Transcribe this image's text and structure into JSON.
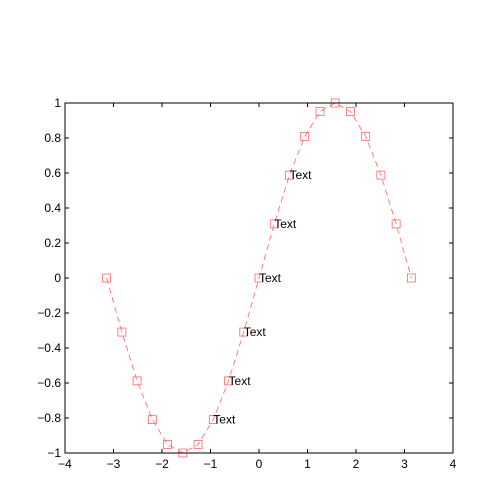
{
  "chart_data": {
    "type": "line",
    "title": "",
    "xlabel": "",
    "ylabel": "",
    "xlim": [
      -4,
      4
    ],
    "ylim": [
      -1,
      1
    ],
    "grid": false,
    "x_ticks": [
      -4,
      -3,
      -2,
      -1,
      0,
      1,
      2,
      3,
      4
    ],
    "y_ticks": [
      -1,
      -0.8,
      -0.6,
      -0.4,
      -0.2,
      0,
      0.2,
      0.4,
      0.6,
      0.8,
      1
    ],
    "x_tick_labels": [
      "−4",
      "−3",
      "−2",
      "−1",
      "0",
      "1",
      "2",
      "3",
      "4"
    ],
    "y_tick_labels": [
      "−1",
      "−0.8",
      "−0.6",
      "−0.4",
      "−0.2",
      "0",
      "0.2",
      "0.4",
      "0.6",
      "0.8",
      "1"
    ],
    "series": [
      {
        "color": "#ff6666",
        "line_style": "dashed",
        "marker": "square",
        "x": [
          -3.1416,
          -2.8274,
          -2.5133,
          -2.1991,
          -1.885,
          -1.5708,
          -1.2566,
          -0.9425,
          -0.6283,
          -0.3142,
          0,
          0.3142,
          0.6283,
          0.9425,
          1.2566,
          1.5708,
          1.885,
          2.1991,
          2.5133,
          2.8274,
          3.1416
        ],
        "y": [
          0,
          -0.309,
          -0.5878,
          -0.809,
          -0.9511,
          -1,
          -0.9511,
          -0.809,
          -0.5878,
          -0.309,
          0,
          0.309,
          0.5878,
          0.809,
          0.9511,
          1,
          0.9511,
          0.809,
          0.5878,
          0.309,
          0
        ]
      }
    ],
    "annotations": [
      {
        "text": "Text",
        "x": -0.9425,
        "y": -0.809
      },
      {
        "text": "Text",
        "x": -0.6283,
        "y": -0.5878
      },
      {
        "text": "Text",
        "x": -0.3142,
        "y": -0.309
      },
      {
        "text": "Text",
        "x": 0,
        "y": 0
      },
      {
        "text": "Text",
        "x": 0.3142,
        "y": 0.309
      },
      {
        "text": "Text",
        "x": 0.6283,
        "y": 0.5878
      }
    ]
  }
}
